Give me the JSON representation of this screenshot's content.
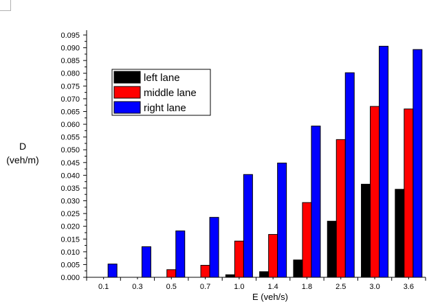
{
  "chart_data": {
    "type": "bar",
    "categories": [
      "0.1",
      "0.3",
      "0.5",
      "0.7",
      "1.0",
      "1.4",
      "1.8",
      "2.5",
      "3.0",
      "3.6"
    ],
    "series": [
      {
        "name": "left lane",
        "color": "#000000",
        "values": [
          0,
          0,
          0,
          0,
          0.001,
          0.0022,
          0.0068,
          0.022,
          0.0365,
          0.0345
        ]
      },
      {
        "name": "middle lane",
        "color": "#ff0000",
        "values": [
          0,
          0,
          0.003,
          0.0047,
          0.0142,
          0.0168,
          0.0293,
          0.054,
          0.067,
          0.066
        ]
      },
      {
        "name": "right lane",
        "color": "#0000ff",
        "values": [
          0.0052,
          0.012,
          0.0182,
          0.0235,
          0.0403,
          0.0448,
          0.0593,
          0.0802,
          0.0906,
          0.0893
        ]
      }
    ],
    "xlabel": "E (veh/s)",
    "ylabel": [
      "D",
      "(veh/m)"
    ],
    "ylim": [
      0,
      0.095
    ],
    "yticks": [
      "0.000",
      "0.005",
      "0.010",
      "0.015",
      "0.020",
      "0.025",
      "0.030",
      "0.035",
      "0.040",
      "0.045",
      "0.050",
      "0.055",
      "0.060",
      "0.065",
      "0.070",
      "0.075",
      "0.080",
      "0.085",
      "0.090",
      "0.095"
    ],
    "legend_position": "upper-left",
    "grid": false
  }
}
